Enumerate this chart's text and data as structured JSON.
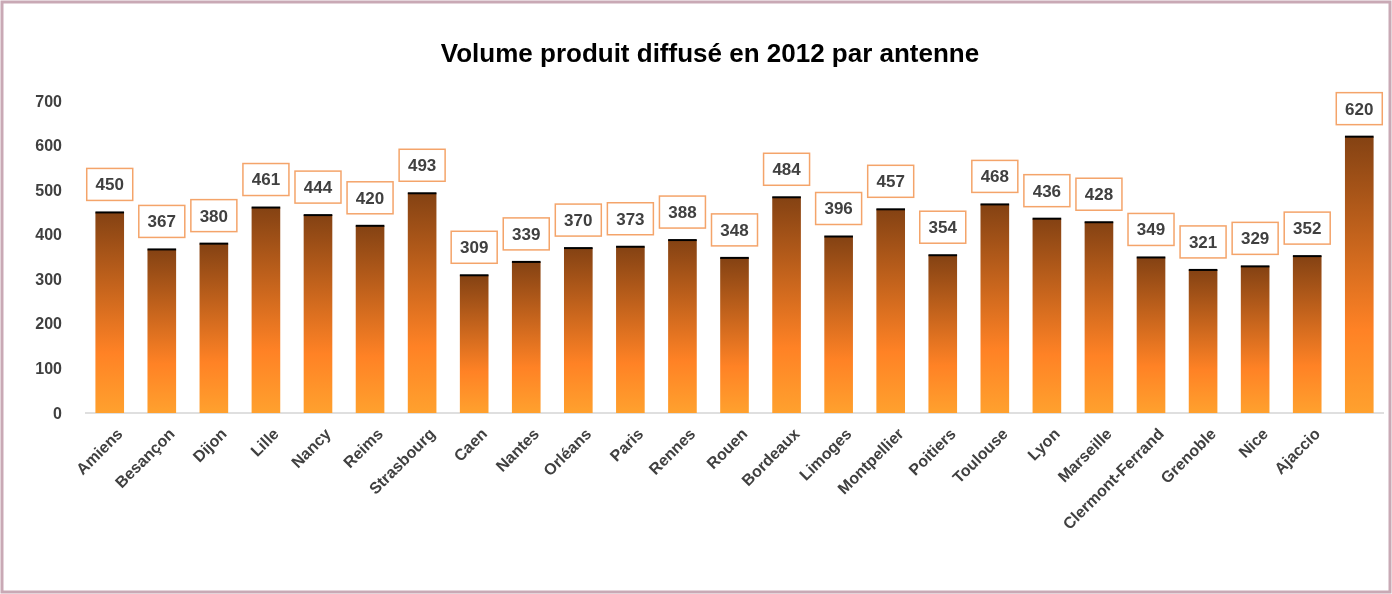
{
  "chart_data": {
    "type": "bar",
    "title": "Volume produit diffusé en 2012 par antenne",
    "categories": [
      "Amiens",
      "Besançon",
      "Dijon",
      "Lille",
      "Nancy",
      "Reims",
      "Strasbourg",
      "Caen",
      "Nantes",
      "Orléans",
      "Paris",
      "Rennes",
      "Rouen",
      "Bordeaux",
      "Limoges",
      "Montpellier",
      "Poitiers",
      "Toulouse",
      "Lyon",
      "Marseille",
      "Clermont-Ferrand",
      "Grenoble",
      "Nice",
      "Ajaccio",
      null
    ],
    "values": [
      450,
      367,
      380,
      461,
      444,
      420,
      493,
      309,
      339,
      370,
      373,
      388,
      348,
      484,
      396,
      457,
      354,
      468,
      436,
      428,
      349,
      321,
      329,
      352,
      620
    ],
    "color": "#d2691e",
    "ylim": [
      0,
      700
    ],
    "yticks": [
      0,
      100,
      200,
      300,
      400,
      500,
      600,
      700
    ],
    "grid": false,
    "data_labels": true
  }
}
